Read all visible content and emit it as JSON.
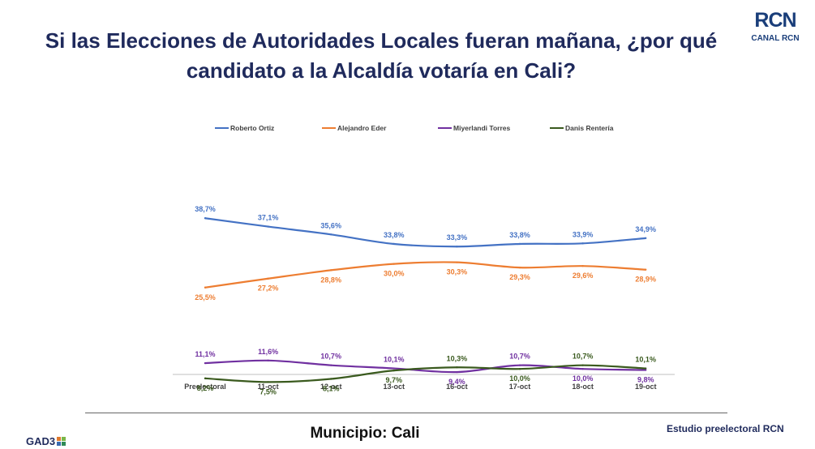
{
  "title": "Si las Elecciones de Autoridades Locales fueran mañana, ¿por qué candidato a la Alcaldía votaría en Cali?",
  "logo": {
    "glyphs": "RCN",
    "text": "CANAL RCN"
  },
  "footer": {
    "left": "GAD3",
    "center": "Municipio: Cali",
    "right": "Estudio preelectoral RCN"
  },
  "chart_data": {
    "type": "line",
    "categories": [
      "Preelectoral",
      "11-oct",
      "12-oct",
      "13-oct",
      "16-oct",
      "17-oct",
      "18-oct",
      "19-oct"
    ],
    "legend_position": "top",
    "grid": false,
    "series": [
      {
        "name": "Roberto Ortiz",
        "color": "#4472c4",
        "values": [
          38.7,
          37.1,
          35.6,
          33.8,
          33.3,
          33.8,
          33.9,
          34.9
        ],
        "labels": [
          "38,7%",
          "37,1%",
          "35,6%",
          "33,8%",
          "33,3%",
          "33,8%",
          "33,9%",
          "34,9%"
        ]
      },
      {
        "name": "Alejandro Eder",
        "color": "#ed7d31",
        "values": [
          25.5,
          27.2,
          28.8,
          30.0,
          30.3,
          29.3,
          29.6,
          28.9
        ],
        "labels": [
          "25,5%",
          "27,2%",
          "28,8%",
          "30,0%",
          "30,3%",
          "29,3%",
          "29,6%",
          "28,9%"
        ]
      },
      {
        "name": "Miyerlandi Torres",
        "color": "#7030a0",
        "values": [
          11.1,
          11.6,
          10.7,
          10.1,
          9.4,
          10.7,
          10.0,
          9.8
        ],
        "labels": [
          "11,1%",
          "11,6%",
          "10,7%",
          "10,1%",
          "9,4%",
          "10,7%",
          "10,0%",
          "9,8%"
        ]
      },
      {
        "name": "Danis Rentería",
        "color": "#3a5a1e",
        "values": [
          8.2,
          7.5,
          8.1,
          9.7,
          10.3,
          10.0,
          10.7,
          10.1
        ],
        "labels": [
          "8,2%",
          "7,5%",
          "8,1%",
          "9,7%",
          "10,3%",
          "10,0%",
          "10,7%",
          "10,1%"
        ]
      }
    ]
  }
}
